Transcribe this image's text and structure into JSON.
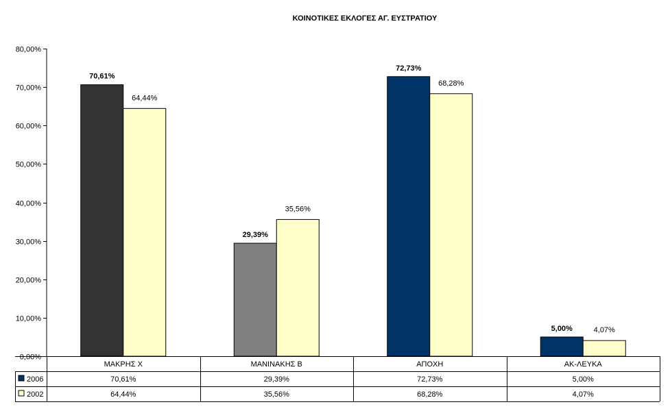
{
  "chart_data": {
    "type": "bar",
    "title": "ΚΟΙΝΟΤΙΚΕΣ  ΕΚΛΟΓΕΣ ΑΓ. ΕΥΣΤΡΑΤΙΟΥ",
    "categories": [
      "ΜΑΚΡΗΣ Χ",
      "ΜΑΝΙΝΑΚΗΣ Β",
      "ΑΠΟΧΗ",
      "ΑΚ-ΛΕΥΚΑ"
    ],
    "series": [
      {
        "name": "2006",
        "values": [
          70.61,
          29.39,
          72.73,
          5.0
        ],
        "labels": [
          "70,61%",
          "29,39%",
          "72,73%",
          "5,00%"
        ],
        "point_colors": [
          "#333333",
          "#808080",
          "#003366",
          "#003366"
        ],
        "legend_color": "#003366"
      },
      {
        "name": "2002",
        "values": [
          64.44,
          35.56,
          68.28,
          4.07
        ],
        "labels": [
          "64,44%",
          "35,56%",
          "68,28%",
          "4,07%"
        ],
        "color": "#FFFFCC",
        "legend_color": "#FFFFCC"
      }
    ],
    "ylim": [
      0,
      80
    ],
    "yticks": [
      0,
      10,
      20,
      30,
      40,
      50,
      60,
      70,
      80
    ],
    "ytick_labels": [
      "0,00%",
      "10,00%",
      "20,00%",
      "30,00%",
      "40,00%",
      "50,00%",
      "60,00%",
      "70,00%",
      "80,00%"
    ],
    "grid": false,
    "legend": "data-table-below",
    "data_table": true
  }
}
